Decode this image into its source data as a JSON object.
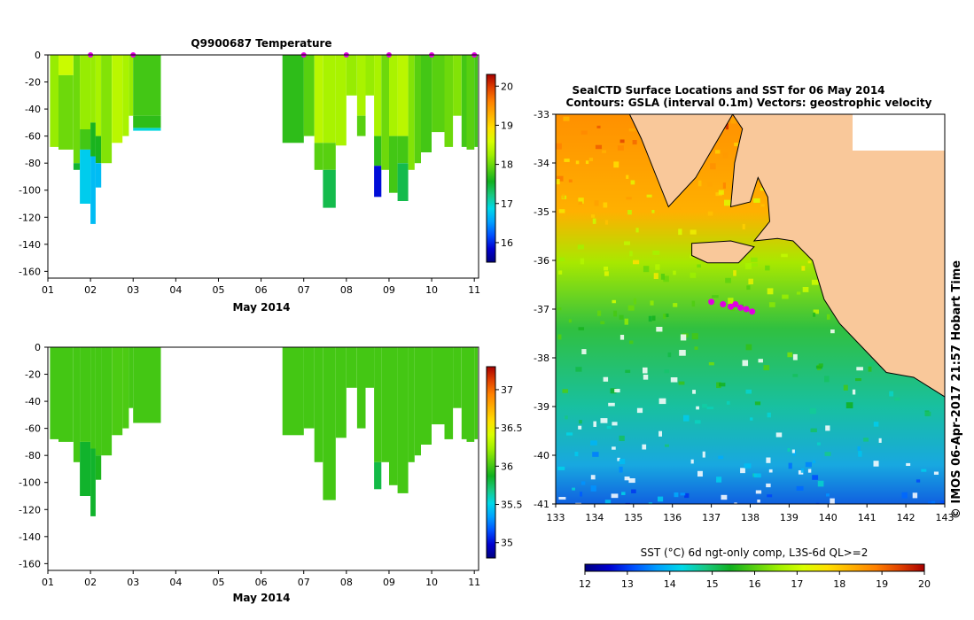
{
  "colors": {
    "land": "#f9c89a",
    "ramp": [
      "#000080",
      "#0000d0",
      "#0050ff",
      "#00a0ff",
      "#00d8e8",
      "#18c880",
      "#10b020",
      "#58d010",
      "#a0f000",
      "#d8ff00",
      "#ffe000",
      "#ffb000",
      "#ff8000",
      "#e04000",
      "#a80000"
    ],
    "marker": "#e000e0"
  },
  "chart_data": [
    {
      "id": "temperature-section",
      "type": "heatmap",
      "title": "Q9900687  Temperature",
      "xlabel": "May 2014",
      "ylabel": "",
      "x_ticks": [
        "01",
        "02",
        "03",
        "04",
        "05",
        "06",
        "07",
        "08",
        "09",
        "10",
        "11"
      ],
      "y_ticks": [
        0,
        -20,
        -40,
        -60,
        -80,
        -100,
        -120,
        -140,
        -160
      ],
      "xlim": [
        1,
        11.1
      ],
      "ylim": [
        -165,
        0
      ],
      "colorbar": {
        "ticks": [
          16,
          17,
          18,
          19,
          20
        ],
        "range": [
          15.5,
          20.3
        ]
      },
      "profile_markers_day": [
        2.0,
        3.0,
        7.0,
        8.0,
        9.0,
        10.0,
        11.0
      ],
      "profiles": [
        {
          "x0": 1.05,
          "x1": 1.25,
          "depth": -68,
          "layers": [
            {
              "to": -68,
              "v": 18.2
            }
          ]
        },
        {
          "x0": 1.25,
          "x1": 1.6,
          "depth": -70,
          "layers": [
            {
              "to": -15,
              "v": 18.5
            },
            {
              "to": -70,
              "v": 18.0
            }
          ]
        },
        {
          "x0": 1.6,
          "x1": 1.75,
          "depth": -85,
          "layers": [
            {
              "to": -80,
              "v": 18.0
            },
            {
              "to": -85,
              "v": 17.5
            }
          ]
        },
        {
          "x0": 1.75,
          "x1": 2.0,
          "depth": -110,
          "layers": [
            {
              "to": -55,
              "v": 18.2
            },
            {
              "to": -70,
              "v": 17.8
            },
            {
              "to": -110,
              "v": 16.8
            }
          ]
        },
        {
          "x0": 2.0,
          "x1": 2.12,
          "depth": -125,
          "layers": [
            {
              "to": -50,
              "v": 18.2
            },
            {
              "to": -75,
              "v": 17.6
            },
            {
              "to": -125,
              "v": 16.7
            }
          ]
        },
        {
          "x0": 2.12,
          "x1": 2.25,
          "depth": -98,
          "layers": [
            {
              "to": -60,
              "v": 18.3
            },
            {
              "to": -80,
              "v": 17.6
            },
            {
              "to": -98,
              "v": 16.7
            }
          ]
        },
        {
          "x0": 2.25,
          "x1": 2.5,
          "depth": -80,
          "layers": [
            {
              "to": -80,
              "v": 18.1
            }
          ]
        },
        {
          "x0": 2.5,
          "x1": 2.75,
          "depth": -65,
          "layers": [
            {
              "to": -65,
              "v": 18.4
            }
          ]
        },
        {
          "x0": 2.75,
          "x1": 2.9,
          "depth": -60,
          "layers": [
            {
              "to": -60,
              "v": 18.3
            }
          ]
        },
        {
          "x0": 2.9,
          "x1": 3.0,
          "depth": -45,
          "layers": [
            {
              "to": -45,
              "v": 18.2
            }
          ]
        },
        {
          "x0": 3.0,
          "x1": 3.65,
          "depth": -56,
          "layers": [
            {
              "to": -45,
              "v": 17.8
            },
            {
              "to": -54,
              "v": 17.7
            },
            {
              "to": -56,
              "v": 16.9
            }
          ]
        },
        {
          "x0": 6.5,
          "x1": 7.0,
          "depth": -65,
          "layers": [
            {
              "to": -65,
              "v": 17.7
            }
          ]
        },
        {
          "x0": 7.0,
          "x1": 7.25,
          "depth": -60,
          "layers": [
            {
              "to": -60,
              "v": 17.9
            }
          ]
        },
        {
          "x0": 7.25,
          "x1": 7.45,
          "depth": -85,
          "layers": [
            {
              "to": -65,
              "v": 18.4
            },
            {
              "to": -85,
              "v": 17.9
            }
          ]
        },
        {
          "x0": 7.45,
          "x1": 7.75,
          "depth": -113,
          "layers": [
            {
              "to": -65,
              "v": 18.3
            },
            {
              "to": -85,
              "v": 17.9
            },
            {
              "to": -113,
              "v": 17.4
            }
          ]
        },
        {
          "x0": 7.75,
          "x1": 8.0,
          "depth": -67,
          "layers": [
            {
              "to": -67,
              "v": 18.3
            }
          ]
        },
        {
          "x0": 8.0,
          "x1": 8.25,
          "depth": -30,
          "layers": [
            {
              "to": -30,
              "v": 18.2
            }
          ]
        },
        {
          "x0": 8.25,
          "x1": 8.45,
          "depth": -60,
          "layers": [
            {
              "to": -45,
              "v": 18.3
            },
            {
              "to": -60,
              "v": 17.9
            }
          ]
        },
        {
          "x0": 8.45,
          "x1": 8.65,
          "depth": -30,
          "layers": [
            {
              "to": -30,
              "v": 18.2
            }
          ]
        },
        {
          "x0": 8.65,
          "x1": 8.82,
          "depth": -105,
          "layers": [
            {
              "to": -60,
              "v": 18.3
            },
            {
              "to": -82,
              "v": 17.7
            },
            {
              "to": -105,
              "v": 15.9
            }
          ]
        },
        {
          "x0": 8.82,
          "x1": 9.0,
          "depth": -85,
          "layers": [
            {
              "to": -85,
              "v": 18.0
            }
          ]
        },
        {
          "x0": 9.0,
          "x1": 9.2,
          "depth": -102,
          "layers": [
            {
              "to": -60,
              "v": 18.3
            },
            {
              "to": -102,
              "v": 17.8
            }
          ]
        },
        {
          "x0": 9.2,
          "x1": 9.45,
          "depth": -108,
          "layers": [
            {
              "to": -60,
              "v": 18.4
            },
            {
              "to": -80,
              "v": 17.8
            },
            {
              "to": -108,
              "v": 17.4
            }
          ]
        },
        {
          "x0": 9.45,
          "x1": 9.6,
          "depth": -85,
          "layers": [
            {
              "to": -85,
              "v": 18.1
            }
          ]
        },
        {
          "x0": 9.6,
          "x1": 9.75,
          "depth": -80,
          "layers": [
            {
              "to": -80,
              "v": 17.9
            }
          ]
        },
        {
          "x0": 9.75,
          "x1": 10.0,
          "depth": -72,
          "layers": [
            {
              "to": -72,
              "v": 17.8
            }
          ]
        },
        {
          "x0": 10.0,
          "x1": 10.3,
          "depth": -57,
          "layers": [
            {
              "to": -57,
              "v": 17.9
            }
          ]
        },
        {
          "x0": 10.3,
          "x1": 10.5,
          "depth": -68,
          "layers": [
            {
              "to": -68,
              "v": 18.0
            }
          ]
        },
        {
          "x0": 10.5,
          "x1": 10.7,
          "depth": -45,
          "layers": [
            {
              "to": -45,
              "v": 18.1
            }
          ]
        },
        {
          "x0": 10.7,
          "x1": 10.82,
          "depth": -68,
          "layers": [
            {
              "to": -68,
              "v": 17.8
            }
          ]
        },
        {
          "x0": 10.82,
          "x1": 11.0,
          "depth": -70,
          "layers": [
            {
              "to": -70,
              "v": 17.9
            }
          ]
        },
        {
          "x0": 11.0,
          "x1": 11.08,
          "depth": -68,
          "layers": [
            {
              "to": -68,
              "v": 17.8
            }
          ]
        }
      ]
    },
    {
      "id": "salinity-section",
      "type": "heatmap",
      "title": "",
      "xlabel": "May 2014",
      "ylabel": "",
      "x_ticks": [
        "01",
        "02",
        "03",
        "04",
        "05",
        "06",
        "07",
        "08",
        "09",
        "10",
        "11"
      ],
      "y_ticks": [
        0,
        -20,
        -40,
        -60,
        -80,
        -100,
        -120,
        -140,
        -160
      ],
      "xlim": [
        1,
        11.1
      ],
      "ylim": [
        -165,
        0
      ],
      "colorbar": {
        "ticks": [
          35,
          35.5,
          36,
          36.5,
          37
        ],
        "range": [
          34.8,
          37.3
        ]
      },
      "profiles": [
        {
          "x0": 1.05,
          "x1": 1.25,
          "depth": -68,
          "layers": [
            {
              "to": -68,
              "v": 36.0
            }
          ]
        },
        {
          "x0": 1.25,
          "x1": 1.6,
          "depth": -70,
          "layers": [
            {
              "to": -70,
              "v": 36.0
            }
          ]
        },
        {
          "x0": 1.6,
          "x1": 1.75,
          "depth": -85,
          "layers": [
            {
              "to": -85,
              "v": 36.0
            }
          ]
        },
        {
          "x0": 1.75,
          "x1": 2.0,
          "depth": -110,
          "layers": [
            {
              "to": -70,
              "v": 36.0
            },
            {
              "to": -110,
              "v": 35.85
            }
          ]
        },
        {
          "x0": 2.0,
          "x1": 2.12,
          "depth": -125,
          "layers": [
            {
              "to": -75,
              "v": 36.0
            },
            {
              "to": -125,
              "v": 35.85
            }
          ]
        },
        {
          "x0": 2.12,
          "x1": 2.25,
          "depth": -98,
          "layers": [
            {
              "to": -80,
              "v": 36.0
            },
            {
              "to": -98,
              "v": 35.9
            }
          ]
        },
        {
          "x0": 2.25,
          "x1": 2.5,
          "depth": -80,
          "layers": [
            {
              "to": -80,
              "v": 36.0
            }
          ]
        },
        {
          "x0": 2.5,
          "x1": 2.75,
          "depth": -65,
          "layers": [
            {
              "to": -65,
              "v": 36.02
            }
          ]
        },
        {
          "x0": 2.75,
          "x1": 2.9,
          "depth": -60,
          "layers": [
            {
              "to": -60,
              "v": 36.02
            }
          ]
        },
        {
          "x0": 2.9,
          "x1": 3.0,
          "depth": -45,
          "layers": [
            {
              "to": -45,
              "v": 36.0
            }
          ]
        },
        {
          "x0": 3.0,
          "x1": 3.65,
          "depth": -56,
          "layers": [
            {
              "to": -56,
              "v": 36.0
            }
          ]
        },
        {
          "x0": 6.5,
          "x1": 7.0,
          "depth": -65,
          "layers": [
            {
              "to": -65,
              "v": 36.0
            }
          ]
        },
        {
          "x0": 7.0,
          "x1": 7.25,
          "depth": -60,
          "layers": [
            {
              "to": -60,
              "v": 36.0
            }
          ]
        },
        {
          "x0": 7.25,
          "x1": 7.45,
          "depth": -85,
          "layers": [
            {
              "to": -85,
              "v": 36.0
            }
          ]
        },
        {
          "x0": 7.45,
          "x1": 7.75,
          "depth": -113,
          "layers": [
            {
              "to": -113,
              "v": 36.0
            }
          ]
        },
        {
          "x0": 7.75,
          "x1": 8.0,
          "depth": -67,
          "layers": [
            {
              "to": -67,
              "v": 36.0
            }
          ]
        },
        {
          "x0": 8.0,
          "x1": 8.25,
          "depth": -30,
          "layers": [
            {
              "to": -30,
              "v": 36.0
            }
          ]
        },
        {
          "x0": 8.25,
          "x1": 8.45,
          "depth": -60,
          "layers": [
            {
              "to": -60,
              "v": 36.0
            }
          ]
        },
        {
          "x0": 8.45,
          "x1": 8.65,
          "depth": -30,
          "layers": [
            {
              "to": -30,
              "v": 36.0
            }
          ]
        },
        {
          "x0": 8.65,
          "x1": 8.82,
          "depth": -105,
          "layers": [
            {
              "to": -85,
              "v": 36.0
            },
            {
              "to": -105,
              "v": 35.8
            }
          ]
        },
        {
          "x0": 8.82,
          "x1": 9.0,
          "depth": -85,
          "layers": [
            {
              "to": -85,
              "v": 36.0
            }
          ]
        },
        {
          "x0": 9.0,
          "x1": 9.2,
          "depth": -102,
          "layers": [
            {
              "to": -102,
              "v": 36.0
            }
          ]
        },
        {
          "x0": 9.2,
          "x1": 9.45,
          "depth": -108,
          "layers": [
            {
              "to": -108,
              "v": 36.0
            }
          ]
        },
        {
          "x0": 9.45,
          "x1": 9.6,
          "depth": -85,
          "layers": [
            {
              "to": -85,
              "v": 36.0
            }
          ]
        },
        {
          "x0": 9.6,
          "x1": 9.75,
          "depth": -80,
          "layers": [
            {
              "to": -80,
              "v": 36.0
            }
          ]
        },
        {
          "x0": 9.75,
          "x1": 10.0,
          "depth": -72,
          "layers": [
            {
              "to": -72,
              "v": 36.0
            }
          ]
        },
        {
          "x0": 10.0,
          "x1": 10.3,
          "depth": -57,
          "layers": [
            {
              "to": -57,
              "v": 36.0
            }
          ]
        },
        {
          "x0": 10.3,
          "x1": 10.5,
          "depth": -68,
          "layers": [
            {
              "to": -68,
              "v": 36.0
            }
          ]
        },
        {
          "x0": 10.5,
          "x1": 10.7,
          "depth": -45,
          "layers": [
            {
              "to": -45,
              "v": 36.0
            }
          ]
        },
        {
          "x0": 10.7,
          "x1": 10.82,
          "depth": -68,
          "layers": [
            {
              "to": -68,
              "v": 36.0
            }
          ]
        },
        {
          "x0": 10.82,
          "x1": 11.0,
          "depth": -70,
          "layers": [
            {
              "to": -70,
              "v": 36.0
            }
          ]
        },
        {
          "x0": 11.0,
          "x1": 11.08,
          "depth": -68,
          "layers": [
            {
              "to": -68,
              "v": 36.0
            }
          ]
        }
      ]
    },
    {
      "id": "sst-map",
      "type": "heatmap",
      "title_line1": "SealCTD Surface Locations and SST for 06 May 2014",
      "title_line2": "Contours: GSLA (interval 0.1m) Vectors: geostrophic velocity",
      "x_ticks": [
        133,
        134,
        135,
        136,
        137,
        138,
        139,
        140,
        141,
        142,
        143
      ],
      "y_ticks": [
        -33,
        -34,
        -35,
        -36,
        -37,
        -38,
        -39,
        -40,
        -41
      ],
      "xlim": [
        133,
        143
      ],
      "ylim": [
        -41,
        -33
      ],
      "colorbar": {
        "label": "SST (°C) 6d ngt-only comp, L3S-6d QL>=2",
        "ticks": [
          12,
          13,
          14,
          15,
          16,
          17,
          18,
          19,
          20
        ],
        "range": [
          12,
          20
        ]
      },
      "side_label": "© IMOS 06-Apr-2017 21:57 Hobart Time",
      "coastline": [
        [
          133,
          -33.0
        ],
        [
          134.9,
          -33.0
        ],
        [
          135.2,
          -33.5
        ],
        [
          135.6,
          -34.3
        ],
        [
          135.9,
          -34.9
        ],
        [
          136.6,
          -34.3
        ],
        [
          137.4,
          -33.2
        ],
        [
          137.55,
          -33.0
        ],
        [
          137.8,
          -33.3
        ],
        [
          137.6,
          -34.0
        ],
        [
          137.5,
          -34.9
        ],
        [
          138.0,
          -34.8
        ],
        [
          138.2,
          -34.3
        ],
        [
          138.45,
          -34.7
        ],
        [
          138.5,
          -35.2
        ],
        [
          138.1,
          -35.6
        ],
        [
          138.7,
          -35.55
        ],
        [
          139.1,
          -35.6
        ],
        [
          139.6,
          -36.0
        ],
        [
          139.9,
          -36.8
        ],
        [
          140.3,
          -37.3
        ],
        [
          140.9,
          -37.8
        ],
        [
          141.5,
          -38.3
        ],
        [
          142.2,
          -38.4
        ],
        [
          143.0,
          -38.8
        ],
        [
          143.0,
          -33.0
        ]
      ],
      "kangaroo_island": [
        [
          136.5,
          -35.65
        ],
        [
          137.5,
          -35.6
        ],
        [
          138.1,
          -35.72
        ],
        [
          137.7,
          -36.05
        ],
        [
          136.9,
          -36.05
        ],
        [
          136.5,
          -35.9
        ]
      ],
      "seal_locations": [
        [
          137.0,
          -36.85
        ],
        [
          137.3,
          -36.9
        ],
        [
          137.5,
          -36.95
        ],
        [
          137.62,
          -36.9
        ],
        [
          137.75,
          -36.97
        ],
        [
          137.9,
          -37.0
        ],
        [
          138.05,
          -37.05
        ]
      ]
    }
  ]
}
